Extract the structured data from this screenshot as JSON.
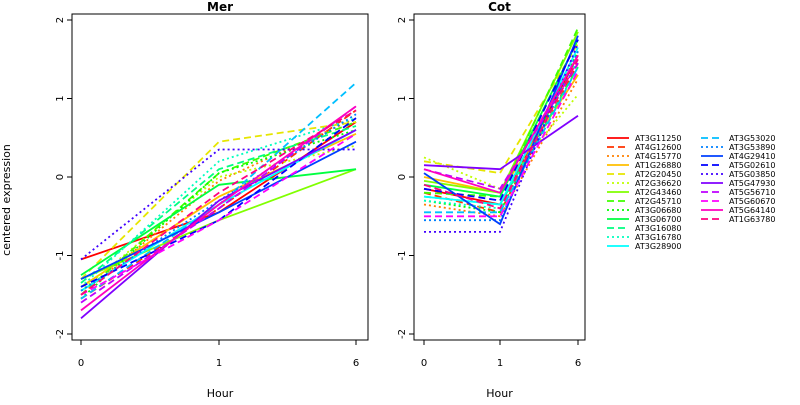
{
  "chart_data": {
    "type": "line",
    "ylabel": "centered expression",
    "ylim": [
      -2,
      2
    ],
    "yticks": [
      -2,
      -1,
      0,
      1,
      2
    ],
    "categories": [
      "0",
      "1",
      "6"
    ],
    "legend_position": "right",
    "panels": [
      {
        "title": "Mer",
        "xlabel": "Hour",
        "series": [
          {
            "name": "AT3G11250",
            "color": "#ff0000",
            "dash": "solid",
            "values": [
              -1.05,
              -0.45,
              0.7
            ]
          },
          {
            "name": "AT4G12600",
            "color": "#ff3300",
            "dash": "dashed",
            "values": [
              -1.55,
              -0.4,
              0.85
            ]
          },
          {
            "name": "AT4G15770",
            "color": "#ff8000",
            "dash": "dotted",
            "values": [
              -1.5,
              -0.05,
              0.75
            ]
          },
          {
            "name": "AT1G26880",
            "color": "#ffbf00",
            "dash": "solid",
            "values": [
              -1.4,
              -0.25,
              0.55
            ]
          },
          {
            "name": "AT2G20450",
            "color": "#e6e600",
            "dash": "dashed",
            "values": [
              -1.3,
              0.45,
              0.7
            ]
          },
          {
            "name": "AT2G36620",
            "color": "#bfff00",
            "dash": "dotted",
            "values": [
              -1.45,
              0.0,
              0.4
            ]
          },
          {
            "name": "AT2G43460",
            "color": "#80ff00",
            "dash": "solid",
            "values": [
              -1.3,
              -0.55,
              0.1
            ]
          },
          {
            "name": "AT2G45710",
            "color": "#40ff00",
            "dash": "dashed",
            "values": [
              -1.5,
              0.05,
              0.7
            ]
          },
          {
            "name": "AT3G06680",
            "color": "#00ff00",
            "dash": "dotted",
            "values": [
              -1.55,
              0.05,
              0.6
            ]
          },
          {
            "name": "AT3G06700",
            "color": "#00ff40",
            "dash": "solid",
            "values": [
              -1.25,
              -0.1,
              0.1
            ]
          },
          {
            "name": "AT3G16080",
            "color": "#00ff80",
            "dash": "dashed",
            "values": [
              -1.35,
              0.1,
              0.65
            ]
          },
          {
            "name": "AT3G16780",
            "color": "#00ffbf",
            "dash": "dotted",
            "values": [
              -1.4,
              0.2,
              0.75
            ]
          },
          {
            "name": "AT3G28900",
            "color": "#00ffff",
            "dash": "solid",
            "values": [
              -1.45,
              -0.35,
              0.6
            ]
          },
          {
            "name": "AT3G53020",
            "color": "#00bfff",
            "dash": "dashed",
            "values": [
              -1.55,
              -0.35,
              1.2
            ]
          },
          {
            "name": "AT3G53890",
            "color": "#0080ff",
            "dash": "dotted",
            "values": [
              -1.45,
              -0.3,
              0.8
            ]
          },
          {
            "name": "AT4G29410",
            "color": "#0040ff",
            "dash": "solid",
            "values": [
              -1.3,
              -0.45,
              0.45
            ]
          },
          {
            "name": "AT5G02610",
            "color": "#0000ff",
            "dash": "dashed",
            "values": [
              -1.4,
              -0.55,
              0.75
            ]
          },
          {
            "name": "AT5G03850",
            "color": "#4000ff",
            "dash": "dotted",
            "values": [
              -1.05,
              0.35,
              0.35
            ]
          },
          {
            "name": "AT5G47930",
            "color": "#8000ff",
            "dash": "solid",
            "values": [
              -1.8,
              -0.3,
              0.6
            ]
          },
          {
            "name": "AT5G56710",
            "color": "#bf00ff",
            "dash": "dashed",
            "values": [
              -1.6,
              -0.4,
              0.9
            ]
          },
          {
            "name": "AT5G60670",
            "color": "#ff00ff",
            "dash": "dashed",
            "values": [
              -1.5,
              -0.55,
              0.55
            ]
          },
          {
            "name": "AT5G64140",
            "color": "#ff00bf",
            "dash": "solid",
            "values": [
              -1.7,
              -0.35,
              0.9
            ]
          },
          {
            "name": "AT1G63780",
            "color": "#ff0080",
            "dash": "dashed",
            "values": [
              -1.5,
              -0.2,
              0.85
            ]
          }
        ]
      },
      {
        "title": "Cot",
        "xlabel": "Hour",
        "series": [
          {
            "name": "AT3G11250",
            "color": "#ff0000",
            "dash": "solid",
            "values": [
              -0.15,
              -0.35,
              1.55
            ]
          },
          {
            "name": "AT4G12600",
            "color": "#ff3300",
            "dash": "dashed",
            "values": [
              -0.2,
              -0.45,
              1.45
            ]
          },
          {
            "name": "AT4G15770",
            "color": "#ff8000",
            "dash": "dotted",
            "values": [
              -0.35,
              -0.5,
              1.25
            ]
          },
          {
            "name": "AT1G26880",
            "color": "#ffbf00",
            "dash": "solid",
            "values": [
              0.0,
              -0.2,
              1.3
            ]
          },
          {
            "name": "AT2G20450",
            "color": "#e6e600",
            "dash": "dashed",
            "values": [
              0.2,
              0.05,
              1.7
            ]
          },
          {
            "name": "AT2G36620",
            "color": "#bfff00",
            "dash": "dotted",
            "values": [
              0.25,
              -0.15,
              1.05
            ]
          },
          {
            "name": "AT2G43460",
            "color": "#80ff00",
            "dash": "solid",
            "values": [
              -0.05,
              -0.2,
              1.85
            ]
          },
          {
            "name": "AT2G45710",
            "color": "#40ff00",
            "dash": "dashed",
            "values": [
              -0.2,
              -0.25,
              1.9
            ]
          },
          {
            "name": "AT3G06680",
            "color": "#00ff00",
            "dash": "dotted",
            "values": [
              -0.3,
              -0.45,
              1.6
            ]
          },
          {
            "name": "AT3G06700",
            "color": "#00ff40",
            "dash": "solid",
            "values": [
              -0.1,
              -0.25,
              1.75
            ]
          },
          {
            "name": "AT3G16080",
            "color": "#00ff80",
            "dash": "dashed",
            "values": [
              -0.25,
              -0.35,
              1.4
            ]
          },
          {
            "name": "AT3G16780",
            "color": "#00ffbf",
            "dash": "dotted",
            "values": [
              -0.3,
              -0.4,
              1.5
            ]
          },
          {
            "name": "AT3G28900",
            "color": "#00ffff",
            "dash": "solid",
            "values": [
              -0.25,
              -0.35,
              1.65
            ]
          },
          {
            "name": "AT3G53020",
            "color": "#00bfff",
            "dash": "dashed",
            "values": [
              -0.45,
              -0.45,
              1.4
            ]
          },
          {
            "name": "AT3G53890",
            "color": "#0080ff",
            "dash": "dotted",
            "values": [
              -0.55,
              -0.55,
              1.6
            ]
          },
          {
            "name": "AT4G29410",
            "color": "#0040ff",
            "dash": "solid",
            "values": [
              0.05,
              -0.6,
              1.8
            ]
          },
          {
            "name": "AT5G02610",
            "color": "#0000ff",
            "dash": "dashed",
            "values": [
              -0.15,
              -0.3,
              1.75
            ]
          },
          {
            "name": "AT5G03850",
            "color": "#4000ff",
            "dash": "dotted",
            "values": [
              -0.7,
              -0.7,
              1.7
            ]
          },
          {
            "name": "AT5G47930",
            "color": "#8000ff",
            "dash": "solid",
            "values": [
              0.15,
              0.1,
              0.78
            ]
          },
          {
            "name": "AT5G56710",
            "color": "#bf00ff",
            "dash": "dashed",
            "values": [
              0.1,
              -0.15,
              1.45
            ]
          },
          {
            "name": "AT5G60670",
            "color": "#ff00ff",
            "dash": "dashed",
            "values": [
              -0.5,
              -0.5,
              1.35
            ]
          },
          {
            "name": "AT5G64140",
            "color": "#ff00bf",
            "dash": "solid",
            "values": [
              0.1,
              -0.2,
              1.55
            ]
          },
          {
            "name": "AT1G63780",
            "color": "#ff0080",
            "dash": "dashed",
            "values": [
              -0.1,
              -0.4,
              1.5
            ]
          }
        ]
      }
    ]
  }
}
